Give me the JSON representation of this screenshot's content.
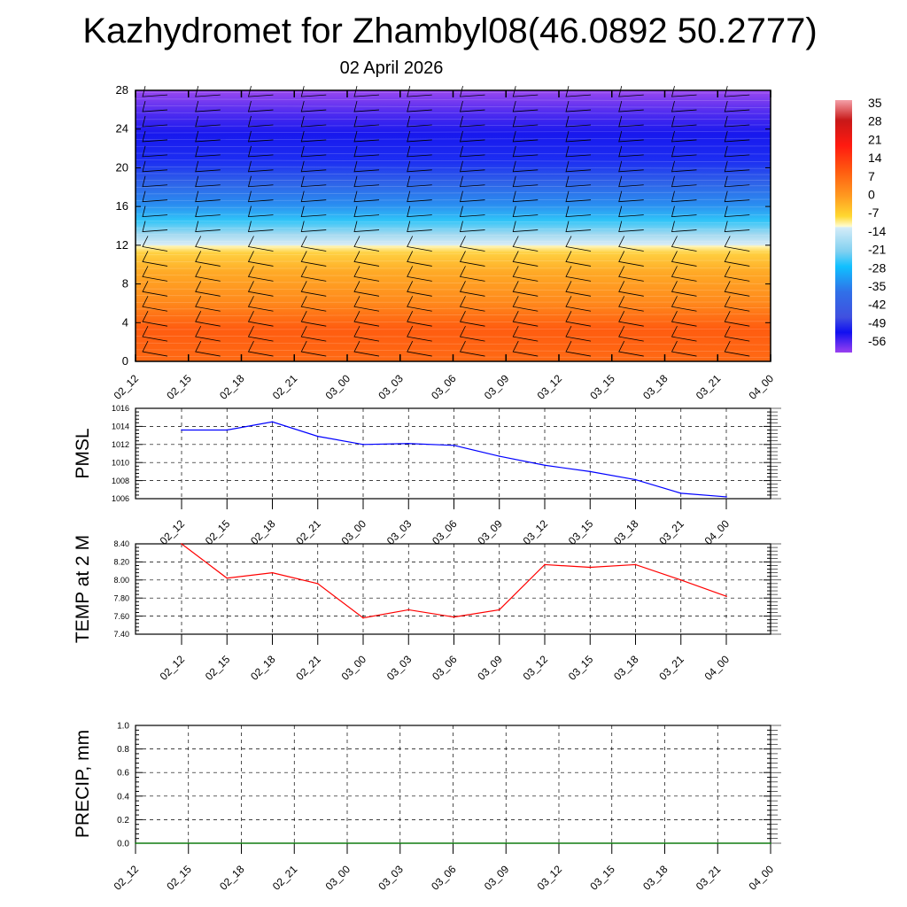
{
  "title": "Kazhydromet for Zhambyl08(46.0892 50.2777)",
  "subtitle": "02 April 2026",
  "chart_data": [
    {
      "type": "heatmap",
      "name": "vertical-temperature-wind-section",
      "ylim": [
        0,
        28
      ],
      "yticks": [
        0,
        4,
        8,
        12,
        16,
        20,
        24,
        28
      ],
      "xtick_labels": [
        "02_12",
        "02_15",
        "02_18",
        "02_21",
        "03_00",
        "03_03",
        "03_06",
        "03_09",
        "03_12",
        "03_15",
        "03_18",
        "03_21",
        "04_00"
      ],
      "colorbar": {
        "labels": [
          "35",
          "28",
          "21",
          "14",
          "7",
          "0",
          "-7",
          "-14",
          "-21",
          "-28",
          "-35",
          "-42",
          "-49",
          "-56"
        ],
        "range": [
          -63,
          42
        ]
      }
    },
    {
      "type": "line",
      "ylabel": "PMSL",
      "ylim": [
        1006,
        1016
      ],
      "yticks": [
        "1006",
        "1008",
        "1010",
        "1012",
        "1014",
        "1016"
      ],
      "categories": [
        "02_12",
        "02_15",
        "02_18",
        "02_21",
        "03_00",
        "03_03",
        "03_06",
        "03_09",
        "03_12",
        "03_15",
        "03_18",
        "03_21",
        "04_00"
      ],
      "values": [
        1013.6,
        1013.6,
        1014.5,
        1012.9,
        1012.0,
        1012.1,
        1011.9,
        1010.7,
        1009.7,
        1009.0,
        1008.1,
        1006.6,
        1006.2
      ],
      "color": "#0000ff"
    },
    {
      "type": "line",
      "ylabel": "TEMP at 2 M",
      "ylim": [
        7.4,
        8.4
      ],
      "yticks": [
        "7.40",
        "7.60",
        "7.80",
        "8.00",
        "8.20",
        "8.40"
      ],
      "categories": [
        "02_12",
        "02_15",
        "02_18",
        "02_21",
        "03_00",
        "03_03",
        "03_06",
        "03_09",
        "03_12",
        "03_15",
        "03_18",
        "03_21",
        "04_00"
      ],
      "values": [
        8.4,
        8.02,
        8.08,
        7.96,
        7.58,
        7.67,
        7.59,
        7.67,
        8.17,
        8.14,
        8.17,
        8.0,
        7.82
      ],
      "color": "#ff0000"
    },
    {
      "type": "line",
      "ylabel": "PRECIP, mm",
      "ylim": [
        0,
        1
      ],
      "yticks": [
        "0.0",
        "0.2",
        "0.4",
        "0.6",
        "0.8",
        "1.0"
      ],
      "categories": [
        "02_12",
        "02_15",
        "02_18",
        "02_21",
        "03_00",
        "03_03",
        "03_06",
        "03_09",
        "03_12",
        "03_15",
        "03_18",
        "03_21",
        "04_00"
      ],
      "values": [
        0,
        0,
        0,
        0,
        0,
        0,
        0,
        0,
        0,
        0,
        0,
        0,
        0
      ],
      "color": "#008000"
    }
  ]
}
